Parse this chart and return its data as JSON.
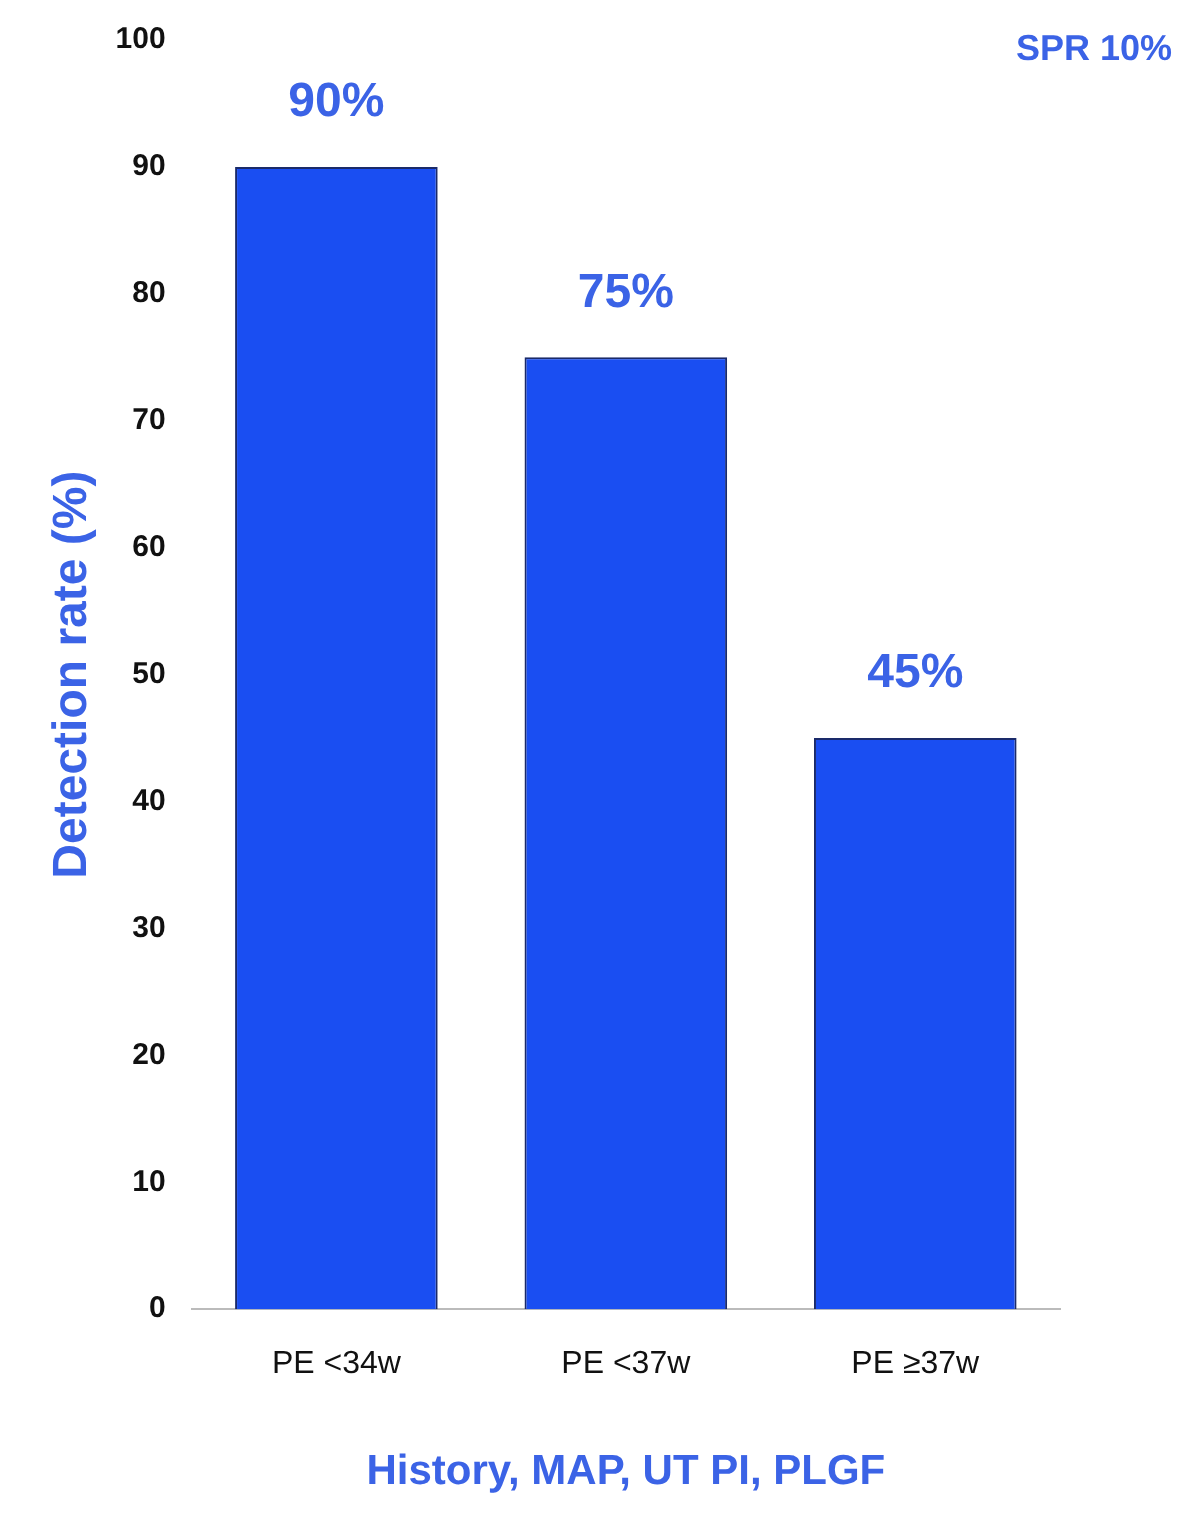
{
  "chart_data": {
    "type": "bar",
    "categories": [
      "PE <34w",
      "PE <37w",
      "PE ≥37w"
    ],
    "values": [
      90,
      75,
      45
    ],
    "value_labels": [
      "90%",
      "75%",
      "45%"
    ],
    "color": "#1a4ef2",
    "ylabel": "Detection rate (%)",
    "xlabel": "History, MAP, UT PI, PLGF",
    "ylim": [
      0,
      100
    ],
    "yticks": [
      0,
      10,
      20,
      30,
      40,
      50,
      60,
      70,
      80,
      90,
      100
    ],
    "grid": false,
    "legend": false,
    "annotations": [
      "SPR 10%"
    ]
  }
}
